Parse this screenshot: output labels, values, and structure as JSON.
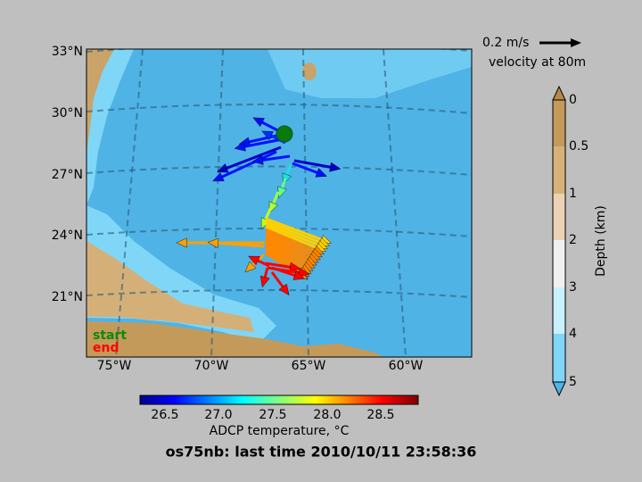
{
  "map": {
    "title": "os75nb: last time 2010/10/11 23:58:36",
    "lat_labels": [
      "33°N",
      "30°N",
      "27°N",
      "24°N",
      "21°N"
    ],
    "lon_labels": [
      "75°W",
      "70°W",
      "65°W",
      "60°W"
    ],
    "scale_arrow": {
      "label": "0.2 m/s",
      "caption": "velocity at 80m"
    },
    "markers": {
      "start": "start",
      "end": "end"
    },
    "depth_colorbar": {
      "label": "Depth (km)",
      "ticks": [
        "0",
        "0.5",
        "1",
        "2",
        "3",
        "4",
        "5"
      ]
    },
    "temperature_colorbar": {
      "label": "ADCP temperature, °C",
      "ticks": [
        "26.5",
        "27.0",
        "27.5",
        "28.0",
        "28.5"
      ]
    }
  }
}
